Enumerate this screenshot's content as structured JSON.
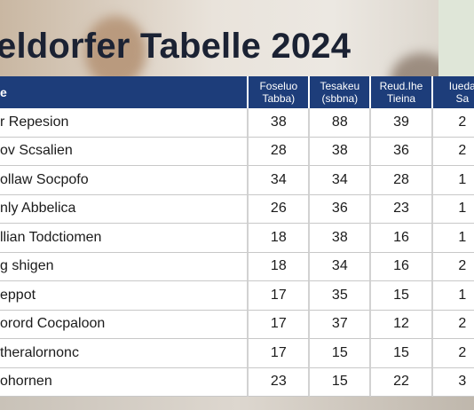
{
  "title": "eldorfer Tabelle 2024",
  "table": {
    "headers": [
      "e",
      "Foseluo\nTabba)",
      "Tesakeu\n(sbbna)",
      "Reud.Ihe\nTieina",
      "Iueda\nSa"
    ],
    "rows": [
      [
        "r Repesion",
        "38",
        "88",
        "39",
        "2"
      ],
      [
        "ov Scsalien",
        "28",
        "38",
        "36",
        "2"
      ],
      [
        "ollaw Socpofo",
        "34",
        "34",
        "28",
        "1"
      ],
      [
        "nly Abbelica",
        "26",
        "36",
        "23",
        "1"
      ],
      [
        "llian Todctiomen",
        "18",
        "38",
        "16",
        "1"
      ],
      [
        "g shigen",
        "18",
        "34",
        "16",
        "2"
      ],
      [
        "eppot",
        "17",
        "35",
        "15",
        "1"
      ],
      [
        "orord Cocpaloon",
        "17",
        "37",
        "12",
        "2"
      ],
      [
        "theralornonc",
        "17",
        "15",
        "15",
        "2"
      ],
      [
        "ohornen",
        "23",
        "15",
        "22",
        "3"
      ]
    ]
  }
}
